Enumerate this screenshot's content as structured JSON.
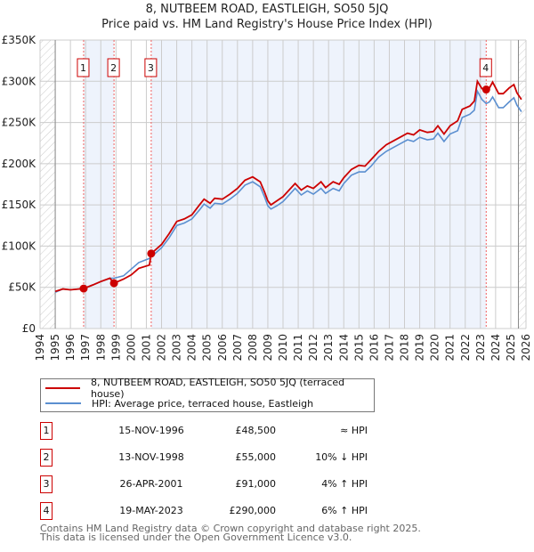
{
  "chart_data": {
    "type": "line",
    "title": "8, NUTBEEM ROAD, EASTLEIGH, SO50 5JQ",
    "subtitle": "Price paid vs. HM Land Registry's House Price Index (HPI)",
    "xlim": [
      1994,
      2026
    ],
    "ylim": [
      0,
      350000
    ],
    "ytick_labels": [
      "£0",
      "£50K",
      "£100K",
      "£150K",
      "£200K",
      "£250K",
      "£300K",
      "£350K"
    ],
    "ytick_values": [
      0,
      50000,
      100000,
      150000,
      200000,
      250000,
      300000,
      350000
    ],
    "xtick_labels": [
      "1994",
      "1995",
      "1996",
      "1997",
      "1998",
      "1999",
      "2000",
      "2001",
      "2002",
      "2003",
      "2004",
      "2005",
      "2006",
      "2007",
      "2008",
      "2009",
      "2010",
      "2011",
      "2012",
      "2013",
      "2014",
      "2015",
      "2016",
      "2017",
      "2018",
      "2019",
      "2020",
      "2021",
      "2022",
      "2023",
      "2024",
      "2025",
      "2026"
    ],
    "grid": true,
    "x": [
      1995,
      1995.5,
      1996,
      1996.87,
      1997.5,
      1998,
      1998.6,
      1998.87,
      1999.5,
      2000,
      2000.5,
      2001.2,
      2001.32,
      2002,
      2002.5,
      2003,
      2003.5,
      2004,
      2004.5,
      2004.8,
      2005.2,
      2005.5,
      2006,
      2006.5,
      2007,
      2007.5,
      2008,
      2008.5,
      2008.8,
      2009,
      2009.2,
      2009.6,
      2010,
      2010.5,
      2010.8,
      2011.2,
      2011.6,
      2012,
      2012.5,
      2012.8,
      2013.3,
      2013.7,
      2014,
      2014.5,
      2015,
      2015.4,
      2015.8,
      2016.3,
      2016.8,
      2017.3,
      2017.8,
      2018.2,
      2018.6,
      2019,
      2019.5,
      2019.9,
      2020.2,
      2020.6,
      2021,
      2021.5,
      2021.8,
      2022.3,
      2022.6,
      2022.8,
      2023.1,
      2023.38,
      2023.6,
      2023.8,
      2024.2,
      2024.5,
      2024.9,
      2025.2,
      2025.4,
      2025.7
    ],
    "series": [
      {
        "name": "8, NUTBEEM ROAD, EASTLEIGH, SO50 5JQ (terraced house)",
        "color": "#cc0000",
        "values": [
          45000,
          48000,
          47000,
          48500,
          53000,
          57000,
          61000,
          55000,
          60000,
          65000,
          73000,
          77000,
          91000,
          102000,
          115000,
          130000,
          133000,
          138000,
          150000,
          157000,
          152000,
          158000,
          157000,
          163000,
          170000,
          180000,
          184000,
          178000,
          165000,
          155000,
          150000,
          155000,
          160000,
          170000,
          176000,
          168000,
          173000,
          170000,
          178000,
          171000,
          178000,
          175000,
          183000,
          193000,
          198000,
          197000,
          205000,
          215000,
          223000,
          228000,
          233000,
          237000,
          235000,
          241000,
          238000,
          239000,
          246000,
          236000,
          246000,
          252000,
          266000,
          270000,
          276000,
          300000,
          291000,
          290000,
          292000,
          299000,
          285000,
          285000,
          292000,
          296000,
          286000,
          278000
        ]
      },
      {
        "name": "HPI: Average price, terraced house, Eastleigh",
        "color": "#5b8fd0",
        "values": [
          44000,
          48000,
          47000,
          48500,
          53000,
          57000,
          61000,
          61000,
          64000,
          72000,
          80000,
          85000,
          87000,
          98000,
          110000,
          125000,
          128000,
          133000,
          144000,
          151000,
          146000,
          152000,
          151000,
          157000,
          164000,
          174000,
          178000,
          172000,
          159000,
          149000,
          145000,
          149000,
          154000,
          164000,
          170000,
          162000,
          167000,
          163000,
          170000,
          164000,
          170000,
          167000,
          176000,
          186000,
          190000,
          190000,
          197000,
          208000,
          215000,
          220000,
          225000,
          229000,
          227000,
          232000,
          229000,
          230000,
          237000,
          227000,
          236000,
          240000,
          256000,
          260000,
          265000,
          288000,
          278000,
          273000,
          275000,
          281000,
          268000,
          268000,
          275000,
          280000,
          271000,
          263000
        ]
      }
    ],
    "sales": [
      {
        "label": "1",
        "x": 1996.87,
        "value": 48500,
        "date": "15-NOV-1996",
        "price": "£48,500",
        "hpi": "≈ HPI"
      },
      {
        "label": "2",
        "x": 1998.87,
        "value": 55000,
        "date": "13-NOV-1998",
        "price": "£55,000",
        "hpi": "10% ↓ HPI"
      },
      {
        "label": "3",
        "x": 2001.32,
        "value": 91000,
        "date": "26-APR-2001",
        "price": "£91,000",
        "hpi": "4% ↑ HPI"
      },
      {
        "label": "4",
        "x": 2023.38,
        "value": 290000,
        "date": "19-MAY-2023",
        "price": "£290,000",
        "hpi": "6% ↑ HPI"
      }
    ],
    "data_end": 2025.5,
    "legend_placement": "bottom"
  },
  "footer": {
    "line1": "Contains HM Land Registry data © Crown copyright and database right 2025.",
    "line2": "This data is licensed under the Open Government Licence v3.0."
  }
}
